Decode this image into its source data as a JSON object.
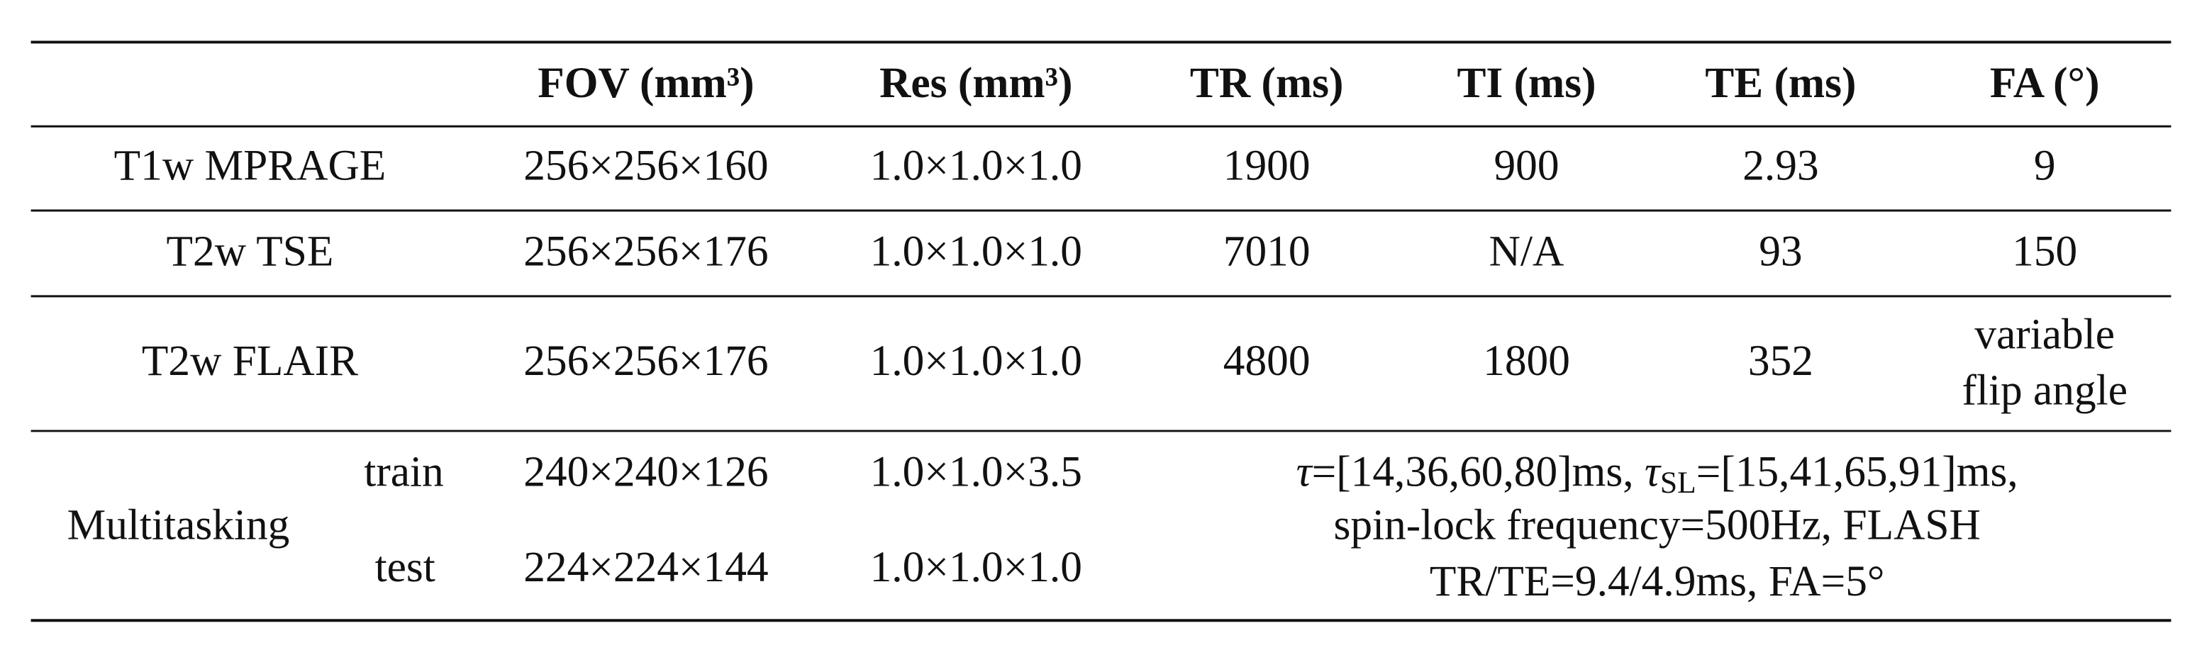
{
  "table": {
    "header": [
      "FOV (mm³)",
      "Res (mm³)",
      "TR (ms)",
      "TI (ms)",
      "TE (ms)",
      "FA (°)"
    ],
    "rows": [
      {
        "label": "T1w MPRAGE",
        "cells": [
          "256×256×160",
          "1.0×1.0×1.0",
          "1900",
          "900",
          "2.93",
          "9"
        ]
      },
      {
        "label": "T2w TSE",
        "cells": [
          "256×256×176",
          "1.0×1.0×1.0",
          "7010",
          "N/A",
          "93",
          "150"
        ]
      },
      {
        "label": "T2w FLAIR",
        "cells": [
          "256×256×176",
          "1.0×1.0×1.0",
          "4800",
          "1800",
          "352"
        ],
        "fa_lines": [
          "variable",
          "flip angle"
        ]
      }
    ],
    "multitasking": {
      "label": "Multitasking",
      "subrows": [
        {
          "name": "train",
          "fov": "240×240×126",
          "res": "1.0×1.0×3.5"
        },
        {
          "name": "test",
          "fov": "224×224×144",
          "res": "1.0×1.0×1.0"
        }
      ],
      "params": {
        "line1": [
          "τ",
          "=[14,36,60,80]ms, ",
          "τ",
          "SL",
          "=[15,41,65,91]ms,"
        ],
        "line2": "spin-lock frequency=500Hz, FLASH",
        "line3": "TR/TE=9.4/4.9ms, FA=5°"
      }
    }
  }
}
